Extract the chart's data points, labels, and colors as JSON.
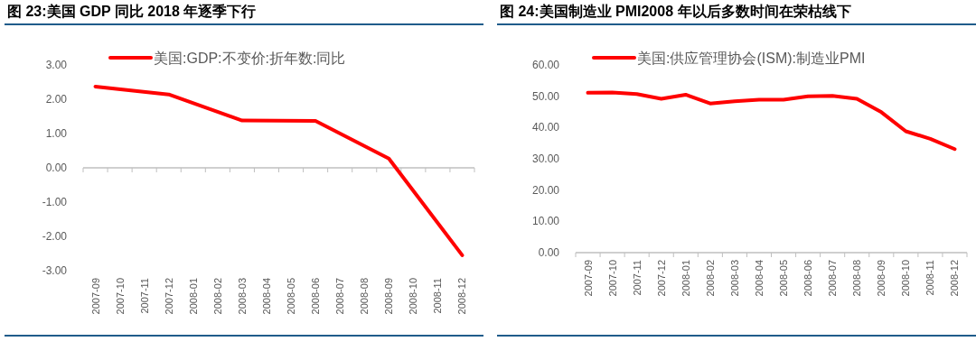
{
  "chart_data": [
    {
      "type": "line",
      "title": "图 23:美国 GDP 同比 2018 年逐季下行",
      "categories": [
        "2007-09",
        "2007-10",
        "2007-11",
        "2007-12",
        "2008-01",
        "2008-02",
        "2008-03",
        "2008-04",
        "2008-05",
        "2008-06",
        "2008-07",
        "2008-08",
        "2008-09",
        "2008-10",
        "2008-11",
        "2008-12"
      ],
      "series": [
        {
          "name": "美国:GDP:不变价:折年数:同比",
          "color": "#ff0000",
          "values": [
            2.37,
            null,
            null,
            2.14,
            null,
            null,
            1.38,
            null,
            null,
            1.37,
            null,
            null,
            0.27,
            null,
            null,
            -2.55
          ]
        }
      ],
      "ylim": [
        -3,
        3
      ],
      "yticks": [
        {
          "value": -3,
          "label": "-3.00"
        },
        {
          "value": -2,
          "label": "-2.00"
        },
        {
          "value": -1,
          "label": "-1.00"
        },
        {
          "value": 0,
          "label": "0.00"
        },
        {
          "value": 1,
          "label": "1.00"
        },
        {
          "value": 2,
          "label": "2.00"
        },
        {
          "value": 3,
          "label": "3.00"
        }
      ],
      "legend": "top"
    },
    {
      "type": "line",
      "title": "图 24:美国制造业 PMI2008 年以后多数时间在荣枯线下",
      "categories": [
        "2007-09",
        "2007-10",
        "2007-11",
        "2007-12",
        "2008-01",
        "2008-02",
        "2008-03",
        "2008-04",
        "2008-05",
        "2008-06",
        "2008-07",
        "2008-08",
        "2008-09",
        "2008-10",
        "2008-11",
        "2008-12"
      ],
      "series": [
        {
          "name": "美国:供应管理协会(ISM):制造业PMI",
          "color": "#ff0000",
          "values": [
            51.1,
            51.2,
            50.7,
            49.2,
            50.5,
            47.7,
            48.4,
            48.9,
            48.9,
            50.0,
            50.1,
            49.2,
            44.9,
            38.8,
            36.4,
            33.1
          ]
        }
      ],
      "ylim": [
        0,
        60
      ],
      "yticks": [
        {
          "value": 0,
          "label": "0.00"
        },
        {
          "value": 10,
          "label": "10.00"
        },
        {
          "value": 20,
          "label": "20.00"
        },
        {
          "value": 30,
          "label": "30.00"
        },
        {
          "value": 40,
          "label": "40.00"
        },
        {
          "value": 50,
          "label": "50.00"
        },
        {
          "value": 60,
          "label": "60.00"
        }
      ],
      "legend": "top"
    }
  ]
}
